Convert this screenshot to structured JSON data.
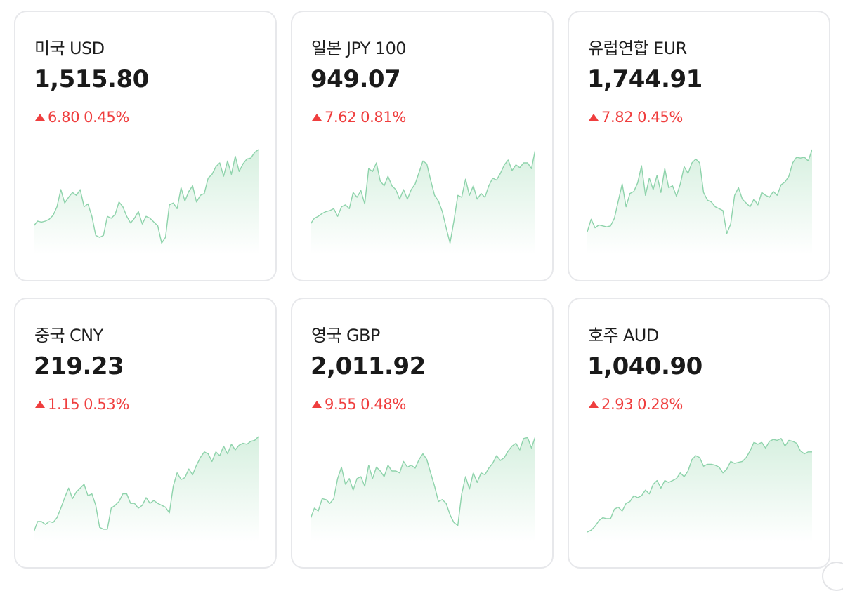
{
  "colors": {
    "up": "#ef3e3e",
    "line": "#8ed3ab",
    "fill_top": "#d7f0e0",
    "fill_bottom": "#ffffff",
    "border": "#e7e8eb"
  },
  "icons": {
    "up": "triangle-up-icon"
  },
  "cards": [
    {
      "name": "미국 USD",
      "rate": "1,515.80",
      "diff": "6.80",
      "pct": "0.45%",
      "direction": "up",
      "spark": [
        0.2,
        0.25,
        0.24,
        0.25,
        0.27,
        0.31,
        0.4,
        0.58,
        0.44,
        0.5,
        0.55,
        0.52,
        0.58,
        0.4,
        0.43,
        0.3,
        0.1,
        0.08,
        0.1,
        0.3,
        0.28,
        0.32,
        0.45,
        0.4,
        0.3,
        0.23,
        0.28,
        0.35,
        0.22,
        0.3,
        0.28,
        0.24,
        0.2,
        0.02,
        0.08,
        0.42,
        0.44,
        0.38,
        0.6,
        0.46,
        0.56,
        0.62,
        0.45,
        0.52,
        0.54,
        0.7,
        0.74,
        0.82,
        0.86,
        0.72,
        0.88,
        0.74,
        0.93,
        0.77,
        0.85,
        0.9,
        0.91,
        0.97,
        1.0
      ]
    },
    {
      "name": "일본 JPY 100",
      "rate": "949.07",
      "diff": "7.62",
      "pct": "0.81%",
      "direction": "up",
      "spark": [
        0.22,
        0.28,
        0.3,
        0.33,
        0.35,
        0.36,
        0.38,
        0.3,
        0.4,
        0.42,
        0.38,
        0.55,
        0.5,
        0.57,
        0.43,
        0.8,
        0.77,
        0.86,
        0.67,
        0.62,
        0.72,
        0.62,
        0.58,
        0.48,
        0.58,
        0.48,
        0.58,
        0.64,
        0.76,
        0.88,
        0.85,
        0.68,
        0.52,
        0.46,
        0.35,
        0.18,
        0.02,
        0.25,
        0.52,
        0.5,
        0.69,
        0.52,
        0.62,
        0.48,
        0.54,
        0.5,
        0.62,
        0.7,
        0.68,
        0.75,
        0.84,
        0.89,
        0.78,
        0.84,
        0.81,
        0.86,
        0.86,
        0.8,
        1.0
      ]
    },
    {
      "name": "유럽연합 EUR",
      "rate": "1,744.91",
      "diff": "7.82",
      "pct": "0.45%",
      "direction": "up",
      "spark": [
        0.14,
        0.27,
        0.18,
        0.21,
        0.2,
        0.19,
        0.2,
        0.28,
        0.46,
        0.64,
        0.4,
        0.54,
        0.56,
        0.65,
        0.83,
        0.52,
        0.7,
        0.58,
        0.73,
        0.55,
        0.8,
        0.6,
        0.62,
        0.51,
        0.64,
        0.82,
        0.75,
        0.86,
        0.9,
        0.86,
        0.55,
        0.47,
        0.45,
        0.4,
        0.38,
        0.36,
        0.12,
        0.22,
        0.52,
        0.6,
        0.48,
        0.44,
        0.4,
        0.48,
        0.42,
        0.55,
        0.52,
        0.5,
        0.56,
        0.52,
        0.63,
        0.66,
        0.72,
        0.86,
        0.92,
        0.91,
        0.92,
        0.88,
        1.0
      ]
    },
    {
      "name": "중국 CNY",
      "rate": "219.23",
      "diff": "1.15",
      "pct": "0.53%",
      "direction": "up",
      "spark": [
        0.0,
        0.11,
        0.11,
        0.08,
        0.11,
        0.1,
        0.15,
        0.25,
        0.36,
        0.46,
        0.35,
        0.42,
        0.46,
        0.5,
        0.38,
        0.4,
        0.28,
        0.05,
        0.03,
        0.03,
        0.25,
        0.28,
        0.32,
        0.4,
        0.4,
        0.3,
        0.3,
        0.25,
        0.28,
        0.36,
        0.3,
        0.33,
        0.3,
        0.28,
        0.26,
        0.2,
        0.48,
        0.62,
        0.55,
        0.57,
        0.66,
        0.6,
        0.7,
        0.78,
        0.84,
        0.82,
        0.74,
        0.84,
        0.8,
        0.9,
        0.82,
        0.92,
        0.86,
        0.91,
        0.93,
        0.92,
        0.95,
        0.96,
        1.0
      ]
    },
    {
      "name": "영국 GBP",
      "rate": "2,011.92",
      "diff": "9.55",
      "pct": "0.48%",
      "direction": "up",
      "spark": [
        0.14,
        0.25,
        0.22,
        0.35,
        0.34,
        0.3,
        0.35,
        0.56,
        0.68,
        0.5,
        0.56,
        0.44,
        0.56,
        0.58,
        0.48,
        0.7,
        0.56,
        0.68,
        0.64,
        0.58,
        0.7,
        0.64,
        0.64,
        0.62,
        0.74,
        0.68,
        0.7,
        0.67,
        0.76,
        0.82,
        0.76,
        0.62,
        0.48,
        0.32,
        0.34,
        0.3,
        0.18,
        0.1,
        0.07,
        0.4,
        0.58,
        0.45,
        0.62,
        0.52,
        0.62,
        0.6,
        0.67,
        0.72,
        0.8,
        0.75,
        0.78,
        0.85,
        0.9,
        0.93,
        0.86,
        0.98,
        0.99,
        0.88,
        1.0
      ]
    },
    {
      "name": "호주 AUD",
      "rate": "1,040.90",
      "diff": "2.93",
      "pct": "0.28%",
      "direction": "up",
      "spark": [
        0.0,
        0.02,
        0.06,
        0.12,
        0.15,
        0.14,
        0.14,
        0.24,
        0.26,
        0.22,
        0.3,
        0.32,
        0.38,
        0.36,
        0.38,
        0.44,
        0.4,
        0.5,
        0.54,
        0.46,
        0.54,
        0.52,
        0.54,
        0.56,
        0.62,
        0.58,
        0.64,
        0.76,
        0.8,
        0.78,
        0.69,
        0.71,
        0.71,
        0.7,
        0.68,
        0.62,
        0.66,
        0.74,
        0.72,
        0.73,
        0.74,
        0.78,
        0.85,
        0.94,
        0.92,
        0.94,
        0.88,
        0.95,
        0.97,
        0.96,
        0.98,
        0.9,
        0.96,
        0.95,
        0.93,
        0.85,
        0.82,
        0.84,
        0.84
      ]
    }
  ]
}
